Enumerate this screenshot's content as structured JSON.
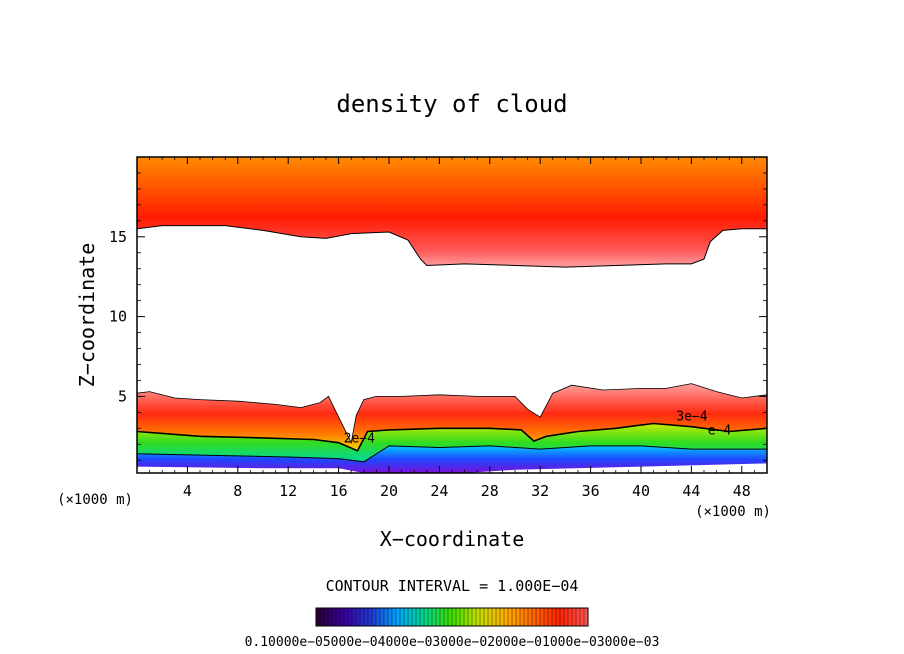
{
  "chart_data": {
    "type": "heatmap",
    "title": "density of cloud",
    "xlabel": "X−coordinate",
    "ylabel": "Z−coordinate",
    "x_unit": "(×1000 m)",
    "y_unit": "(×1000 m)",
    "xlim": [
      0,
      50
    ],
    "ylim": [
      0.2,
      20
    ],
    "x_ticks": [
      4,
      8,
      12,
      16,
      20,
      24,
      28,
      32,
      36,
      40,
      44,
      48
    ],
    "x_tick_labels": [
      "4",
      "8",
      "12",
      "16",
      "20",
      "24",
      "28",
      "32",
      "36",
      "40",
      "44",
      "48"
    ],
    "y_ticks": [
      5,
      10,
      15
    ],
    "y_tick_labels": [
      "5",
      "10",
      "15"
    ],
    "contour_interval_text": "CONTOUR INTERVAL = 1.000E−04",
    "contour_labels": [
      {
        "text": "2e−4",
        "x": 16.4,
        "z": 2.1
      },
      {
        "text": "3e−4",
        "x": 42.8,
        "z": 3.5
      },
      {
        "text": "e−4",
        "x": 45.3,
        "z": 2.6
      }
    ],
    "upper_cloud": {
      "base": [
        {
          "x": 0,
          "z": 15.5
        },
        {
          "x": 2,
          "z": 15.7
        },
        {
          "x": 4,
          "z": 15.7
        },
        {
          "x": 7,
          "z": 15.7
        },
        {
          "x": 10,
          "z": 15.4
        },
        {
          "x": 13,
          "z": 15.0
        },
        {
          "x": 15,
          "z": 14.9
        },
        {
          "x": 17,
          "z": 15.2
        },
        {
          "x": 20,
          "z": 15.3
        },
        {
          "x": 21.5,
          "z": 14.8
        },
        {
          "x": 22.5,
          "z": 13.6
        },
        {
          "x": 23,
          "z": 13.2
        },
        {
          "x": 26,
          "z": 13.3
        },
        {
          "x": 30,
          "z": 13.2
        },
        {
          "x": 34,
          "z": 13.1
        },
        {
          "x": 38,
          "z": 13.2
        },
        {
          "x": 42,
          "z": 13.3
        },
        {
          "x": 44,
          "z": 13.3
        },
        {
          "x": 45,
          "z": 13.6
        },
        {
          "x": 45.5,
          "z": 14.7
        },
        {
          "x": 46.5,
          "z": 15.4
        },
        {
          "x": 48,
          "z": 15.5
        },
        {
          "x": 50,
          "z": 15.5
        }
      ],
      "top": 20
    },
    "lower_cloud": {
      "top": [
        {
          "x": 0,
          "z": 5.2
        },
        {
          "x": 1,
          "z": 5.3
        },
        {
          "x": 3,
          "z": 4.9
        },
        {
          "x": 5,
          "z": 4.8
        },
        {
          "x": 8,
          "z": 4.7
        },
        {
          "x": 11,
          "z": 4.5
        },
        {
          "x": 13,
          "z": 4.3
        },
        {
          "x": 14.5,
          "z": 4.6
        },
        {
          "x": 15.2,
          "z": 5.0
        },
        {
          "x": 17,
          "z": 2.1
        },
        {
          "x": 17.4,
          "z": 3.8
        },
        {
          "x": 18,
          "z": 4.8
        },
        {
          "x": 19,
          "z": 5.0
        },
        {
          "x": 21,
          "z": 5.0
        },
        {
          "x": 24,
          "z": 5.1
        },
        {
          "x": 27,
          "z": 5.0
        },
        {
          "x": 30,
          "z": 5.0
        },
        {
          "x": 31,
          "z": 4.2
        },
        {
          "x": 32,
          "z": 3.7
        },
        {
          "x": 33,
          "z": 5.2
        },
        {
          "x": 34.5,
          "z": 5.7
        },
        {
          "x": 37,
          "z": 5.4
        },
        {
          "x": 40,
          "z": 5.5
        },
        {
          "x": 42,
          "z": 5.5
        },
        {
          "x": 44,
          "z": 5.8
        },
        {
          "x": 46,
          "z": 5.3
        },
        {
          "x": 48,
          "z": 4.9
        },
        {
          "x": 50,
          "z": 5.1
        }
      ],
      "contour_2e4": [
        {
          "x": 0,
          "z": 2.8
        },
        {
          "x": 5,
          "z": 2.5
        },
        {
          "x": 10,
          "z": 2.4
        },
        {
          "x": 14,
          "z": 2.3
        },
        {
          "x": 16,
          "z": 2.1
        },
        {
          "x": 17.5,
          "z": 1.6
        },
        {
          "x": 18.3,
          "z": 2.8
        },
        {
          "x": 20,
          "z": 2.9
        },
        {
          "x": 24,
          "z": 3.0
        },
        {
          "x": 28,
          "z": 3.0
        },
        {
          "x": 30.5,
          "z": 2.9
        },
        {
          "x": 31.5,
          "z": 2.2
        },
        {
          "x": 32.5,
          "z": 2.5
        },
        {
          "x": 35,
          "z": 2.8
        },
        {
          "x": 38,
          "z": 3.0
        },
        {
          "x": 41,
          "z": 3.3
        },
        {
          "x": 44,
          "z": 3.1
        },
        {
          "x": 47,
          "z": 2.8
        },
        {
          "x": 50,
          "z": 3.0
        }
      ],
      "contour_1e4": [
        {
          "x": 0,
          "z": 1.4
        },
        {
          "x": 6,
          "z": 1.3
        },
        {
          "x": 12,
          "z": 1.2
        },
        {
          "x": 16,
          "z": 1.1
        },
        {
          "x": 18,
          "z": 0.9
        },
        {
          "x": 20,
          "z": 1.9
        },
        {
          "x": 24,
          "z": 1.8
        },
        {
          "x": 28,
          "z": 1.9
        },
        {
          "x": 32,
          "z": 1.7
        },
        {
          "x": 36,
          "z": 1.9
        },
        {
          "x": 40,
          "z": 1.9
        },
        {
          "x": 44,
          "z": 1.7
        },
        {
          "x": 50,
          "z": 1.7
        }
      ],
      "bottom": [
        {
          "x": 0,
          "z": 0.6
        },
        {
          "x": 10,
          "z": 0.5
        },
        {
          "x": 16,
          "z": 0.5
        },
        {
          "x": 18,
          "z": 0.2
        },
        {
          "x": 26,
          "z": 0.2
        },
        {
          "x": 30,
          "z": 0.4
        },
        {
          "x": 40,
          "z": 0.6
        },
        {
          "x": 50,
          "z": 0.8
        }
      ]
    },
    "colorbar": {
      "label_text": "0.10000e−05000e−04000e−03000e−02000e−01000e−03000e−03",
      "colors": [
        "#2a0036",
        "#3a00a0",
        "#1f3cd6",
        "#00a6ff",
        "#00d88a",
        "#3ee000",
        "#c6e000",
        "#ffb000",
        "#ff6a00",
        "#ff2200",
        "#ff5050"
      ]
    },
    "colors": {
      "frame": "#000000",
      "contour_line": "#000000",
      "cloud_top_orange": "#ff7a00",
      "cloud_core_red": "#ff1a00",
      "cloud_edge_pink": "#ff9a9a",
      "green": "#20d020",
      "yellow": "#e8e800",
      "cyan": "#00c8ff",
      "blue": "#1e46ff",
      "violet": "#7a10d8"
    }
  }
}
